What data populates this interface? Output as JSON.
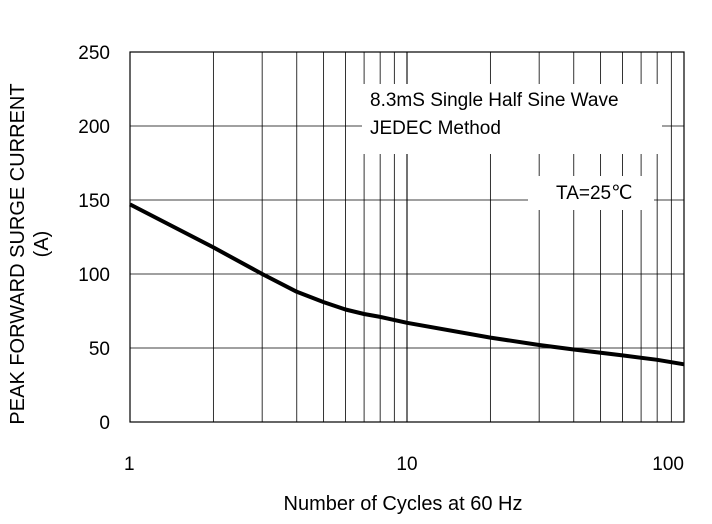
{
  "chart_data": {
    "type": "line",
    "xlabel": "Number of Cycles at 60 Hz",
    "ylabel_line1": "PEAK FORWARD SURGE CURRENT",
    "ylabel_line2": "(A)",
    "x_scale": "log",
    "xlim": [
      1,
      100
    ],
    "ylim": [
      0,
      250
    ],
    "x_ticks": [
      1,
      10,
      100
    ],
    "x_tick_labels": [
      "1",
      "10",
      "100"
    ],
    "y_ticks": [
      0,
      50,
      100,
      150,
      200,
      250
    ],
    "y_tick_labels": [
      "0",
      "50",
      "100",
      "150",
      "200",
      "250"
    ],
    "grid": true,
    "annotations": {
      "line1": "8.3mS Single Half Sine Wave",
      "line2": "JEDEC Method",
      "condition": "TA=25℃"
    },
    "series": [
      {
        "x": [
          1,
          2,
          3,
          4,
          5,
          6,
          7,
          8,
          10,
          20,
          30,
          40,
          60,
          80,
          100
        ],
        "values": [
          147,
          118,
          100,
          88,
          81,
          76,
          73,
          71,
          67,
          57,
          52,
          49,
          45,
          42,
          39
        ]
      }
    ],
    "colors": {
      "grid": "#000000",
      "line": "#000000",
      "background": "#ffffff"
    }
  }
}
